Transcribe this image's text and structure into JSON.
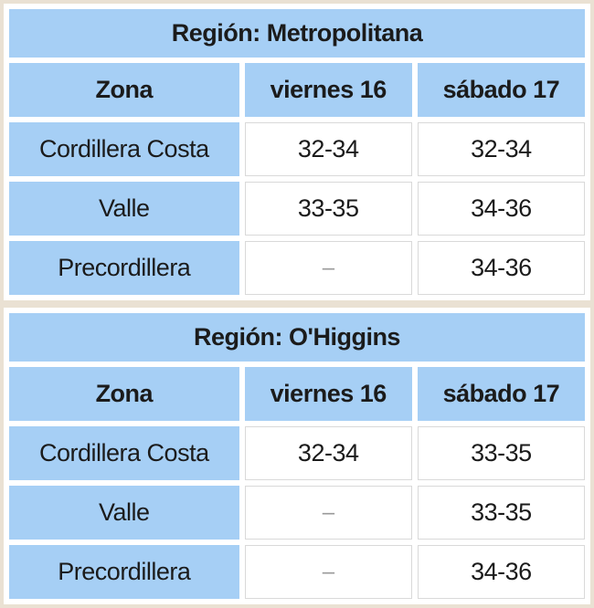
{
  "colors": {
    "header_bg": "#a6cff5",
    "outer_border": "#eae1d3",
    "value_cell_border": "#d9d9d9",
    "text": "#1b1b1b",
    "empty_dash": "#999999"
  },
  "empty_value_glyph": "–",
  "chart_data": [
    {
      "type": "table",
      "title": "Región: Metropolitana",
      "columns": [
        "Zona",
        "viernes 16",
        "sábado 17"
      ],
      "rows": [
        [
          "Cordillera Costa",
          "32-34",
          "32-34"
        ],
        [
          "Valle",
          "33-35",
          "34-36"
        ],
        [
          "Precordillera",
          "–",
          "34-36"
        ]
      ]
    },
    {
      "type": "table",
      "title": "Región: O'Higgins",
      "columns": [
        "Zona",
        "viernes 16",
        "sábado 17"
      ],
      "rows": [
        [
          "Cordillera Costa",
          "32-34",
          "33-35"
        ],
        [
          "Valle",
          "–",
          "33-35"
        ],
        [
          "Precordillera",
          "–",
          "34-36"
        ]
      ]
    }
  ]
}
